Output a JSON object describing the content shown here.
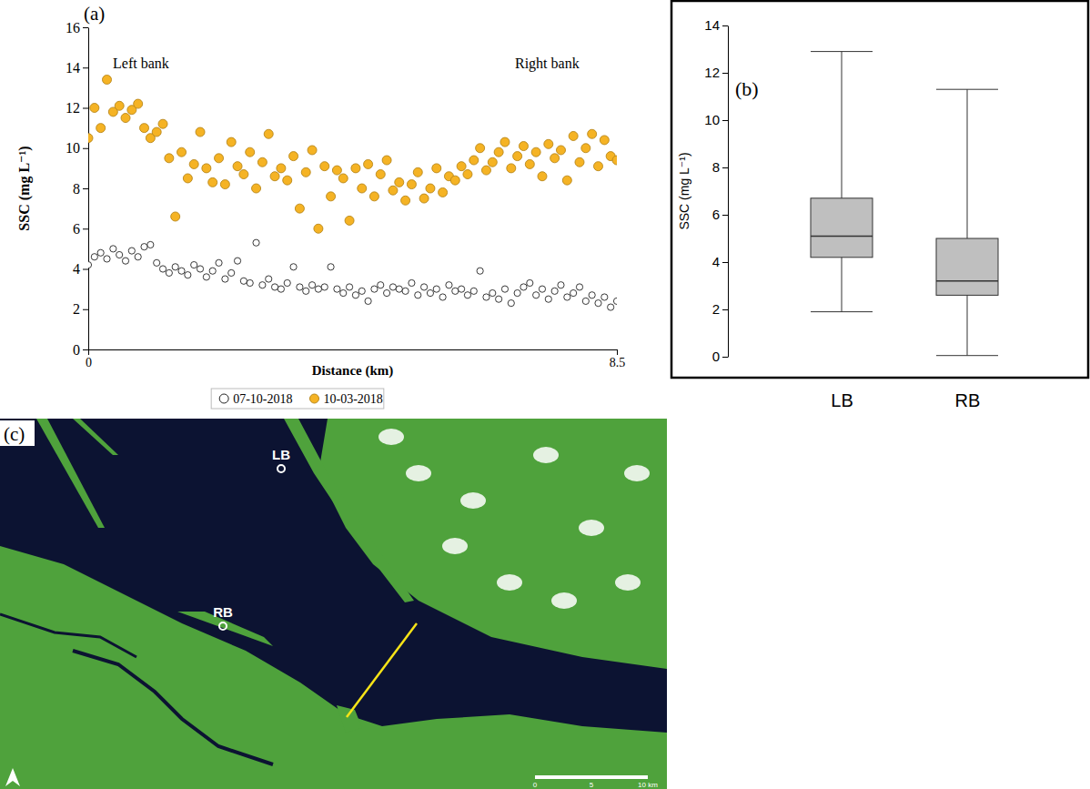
{
  "chart_data": [
    {
      "type": "scatter",
      "panel_label": "(a)",
      "x_label": "Distance (km)",
      "y_label": "SSC (mg L⁻¹)",
      "annotations": [
        "Left bank",
        "Right bank"
      ],
      "xlim": [
        0,
        8.5
      ],
      "xticks": [
        0,
        8.5
      ],
      "ylim": [
        0,
        16
      ],
      "yticks": [
        0,
        2,
        4,
        6,
        8,
        10,
        12,
        14,
        16
      ],
      "grid": false,
      "legend": "bottom",
      "x": [
        0,
        0.1,
        0.2,
        0.3,
        0.4,
        0.5,
        0.6,
        0.7,
        0.8,
        0.9,
        1,
        1.1,
        1.2,
        1.3,
        1.4,
        1.5,
        1.6,
        1.7,
        1.8,
        1.9,
        2,
        2.1,
        2.2,
        2.3,
        2.4,
        2.5,
        2.6,
        2.7,
        2.8,
        2.9,
        3,
        3.1,
        3.2,
        3.3,
        3.4,
        3.5,
        3.6,
        3.7,
        3.8,
        3.9,
        4,
        4.1,
        4.2,
        4.3,
        4.4,
        4.5,
        4.6,
        4.7,
        4.8,
        4.9,
        5,
        5.1,
        5.2,
        5.3,
        5.4,
        5.5,
        5.6,
        5.7,
        5.8,
        5.9,
        6,
        6.1,
        6.2,
        6.3,
        6.4,
        6.5,
        6.6,
        6.7,
        6.8,
        6.9,
        7,
        7.1,
        7.2,
        7.3,
        7.4,
        7.5,
        7.6,
        7.7,
        7.8,
        7.9,
        8,
        8.1,
        8.2,
        8.3,
        8.4,
        8.5
      ],
      "series": [
        {
          "name": "07-10-2018",
          "color": "#ffffff",
          "marker": "circle",
          "values": [
            4.2,
            4.6,
            4.8,
            4.5,
            5.0,
            4.7,
            4.4,
            4.9,
            4.6,
            5.1,
            5.2,
            4.3,
            4.0,
            3.8,
            4.1,
            3.9,
            3.7,
            4.2,
            4.0,
            3.6,
            3.9,
            4.3,
            3.5,
            3.8,
            4.4,
            3.4,
            3.3,
            5.3,
            3.2,
            3.5,
            3.1,
            3.0,
            3.3,
            4.1,
            3.1,
            2.9,
            3.2,
            3.0,
            3.1,
            4.1,
            3.0,
            2.8,
            3.1,
            2.7,
            2.9,
            2.4,
            3.0,
            3.2,
            2.8,
            3.1,
            3.0,
            2.9,
            3.3,
            2.7,
            3.1,
            2.8,
            3.0,
            2.6,
            3.2,
            2.9,
            3.0,
            2.7,
            2.9,
            3.9,
            2.6,
            2.8,
            2.5,
            3.0,
            2.3,
            2.8,
            3.1,
            3.3,
            2.7,
            3.0,
            2.5,
            2.9,
            3.2,
            2.6,
            2.8,
            3.1,
            2.4,
            2.7,
            2.3,
            2.6,
            2.1,
            2.4
          ]
        },
        {
          "name": "10-03-2018",
          "color": "#f5b324",
          "marker": "circle",
          "values": [
            10.5,
            12,
            11,
            13.4,
            11.8,
            12.1,
            11.5,
            11.9,
            12.2,
            11,
            10.5,
            10.8,
            11.2,
            9.5,
            6.6,
            9.8,
            8.5,
            9.2,
            10.8,
            9.0,
            8.3,
            9.5,
            8.2,
            10.3,
            9.1,
            8.7,
            9.8,
            8.0,
            9.3,
            10.7,
            8.6,
            9.0,
            8.4,
            9.6,
            7.0,
            8.8,
            9.9,
            6.0,
            9.1,
            7.6,
            8.9,
            8.5,
            6.4,
            9.0,
            8.0,
            9.2,
            7.6,
            8.7,
            9.4,
            7.9,
            8.3,
            7.4,
            8.2,
            8.8,
            7.5,
            8.0,
            9.0,
            7.8,
            8.6,
            8.4,
            9.1,
            8.7,
            9.4,
            10.0,
            8.9,
            9.3,
            9.8,
            10.3,
            9.0,
            9.6,
            10.1,
            9.2,
            9.8,
            8.6,
            10.2,
            9.5,
            9.9,
            8.4,
            10.6,
            9.3,
            10.0,
            10.7,
            9.1,
            10.4,
            9.6,
            9.4
          ]
        }
      ]
    },
    {
      "type": "box",
      "panel_label": "(b)",
      "y_label": "SSC (mg L⁻¹)",
      "categories": [
        "LB",
        "RB"
      ],
      "color": "#bfbfbf",
      "ylim": [
        0,
        14
      ],
      "yticks": [
        0,
        2,
        4,
        6,
        8,
        10,
        12,
        14
      ],
      "grid": false,
      "min": [
        1.9,
        0.05
      ],
      "q1": [
        4.2,
        2.6
      ],
      "median": [
        5.1,
        3.2
      ],
      "q3": [
        6.7,
        5.0
      ],
      "max": [
        12.9,
        11.3
      ]
    }
  ],
  "map": {
    "panel_label": "(c)",
    "points": [
      "LB",
      "RB"
    ],
    "scale_labels": [
      "0",
      "5",
      "10 km"
    ]
  }
}
